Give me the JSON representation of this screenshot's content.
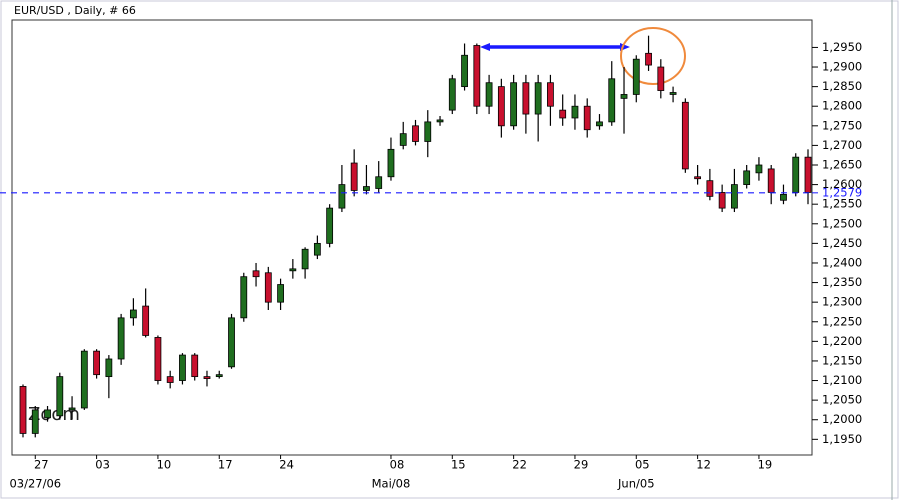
{
  "chart_data": {
    "type": "candlestick",
    "title": "EUR/USD , Daily, # 66",
    "annotation": "Zoom",
    "categories": [
      null,
      "27",
      null,
      null,
      null,
      null,
      "03",
      null,
      null,
      null,
      null,
      "10",
      null,
      null,
      null,
      null,
      "17",
      null,
      null,
      null,
      null,
      "24",
      null,
      null,
      null,
      null,
      null,
      null,
      null,
      null,
      "08",
      null,
      null,
      null,
      null,
      "15",
      null,
      null,
      null,
      null,
      "22",
      null,
      null,
      null,
      null,
      "29",
      null,
      null,
      null,
      null,
      "05",
      null,
      null,
      null,
      null,
      "12",
      null,
      null,
      null,
      null,
      "19",
      null,
      null,
      null,
      null
    ],
    "date_labels": [
      null,
      "03/27/06",
      null,
      null,
      null,
      null,
      null,
      null,
      null,
      null,
      null,
      null,
      null,
      null,
      null,
      null,
      null,
      null,
      null,
      null,
      null,
      null,
      null,
      null,
      null,
      null,
      null,
      null,
      null,
      null,
      "Mai/08",
      null,
      null,
      null,
      null,
      null,
      null,
      null,
      null,
      null,
      null,
      null,
      null,
      null,
      null,
      null,
      null,
      null,
      null,
      null,
      "Jun/05",
      null,
      null,
      null,
      null,
      null,
      null,
      null,
      null,
      null,
      null,
      null,
      null,
      null,
      null
    ],
    "open": [
      1.2085,
      1.1965,
      1.2005,
      1.201,
      1.2025,
      1.203,
      1.2175,
      1.211,
      1.2155,
      1.226,
      1.229,
      1.221,
      1.211,
      1.21,
      1.2165,
      1.211,
      1.211,
      1.2135,
      1.226,
      1.238,
      1.2375,
      1.23,
      1.238,
      1.2385,
      1.242,
      1.245,
      1.254,
      1.2655,
      1.2585,
      1.259,
      1.262,
      1.27,
      1.275,
      1.271,
      1.276,
      1.279,
      1.285,
      1.2955,
      1.28,
      1.285,
      1.275,
      1.286,
      1.278,
      1.286,
      1.279,
      1.277,
      1.28,
      1.275,
      1.276,
      1.282,
      1.283,
      1.2935,
      1.29,
      1.283,
      1.281,
      1.262,
      1.261,
      1.258,
      1.254,
      1.26,
      1.263,
      1.264,
      1.256,
      1.258,
      1.267
    ],
    "high": [
      1.209,
      1.2035,
      1.2035,
      1.212,
      1.206,
      1.218,
      1.218,
      1.2165,
      1.227,
      1.231,
      1.2335,
      1.2215,
      1.2125,
      1.217,
      1.217,
      1.2125,
      1.2125,
      1.227,
      1.2375,
      1.24,
      1.239,
      1.236,
      1.241,
      1.244,
      1.247,
      1.255,
      1.265,
      1.269,
      1.265,
      1.266,
      1.272,
      1.276,
      1.2765,
      1.279,
      1.2775,
      1.288,
      1.296,
      1.296,
      1.288,
      1.287,
      1.288,
      1.288,
      1.288,
      1.288,
      1.283,
      1.283,
      1.282,
      1.278,
      1.2915,
      1.29,
      1.293,
      1.298,
      1.292,
      1.285,
      1.282,
      1.265,
      1.264,
      1.26,
      1.264,
      1.265,
      1.267,
      1.265,
      1.26,
      1.268,
      1.269
    ],
    "low": [
      1.1955,
      1.1955,
      1.1995,
      1.2,
      1.2,
      1.2025,
      1.2105,
      1.2055,
      1.214,
      1.224,
      1.221,
      1.209,
      1.208,
      1.209,
      1.21,
      1.2085,
      1.2105,
      1.213,
      1.225,
      1.234,
      1.228,
      1.228,
      1.236,
      1.236,
      1.241,
      1.244,
      1.253,
      1.257,
      1.2575,
      1.258,
      1.261,
      1.269,
      1.27,
      1.267,
      1.275,
      1.278,
      1.284,
      1.278,
      1.278,
      1.272,
      1.274,
      1.273,
      1.271,
      1.275,
      1.275,
      1.274,
      1.272,
      1.274,
      1.275,
      1.273,
      1.281,
      1.289,
      1.282,
      1.281,
      1.263,
      1.26,
      1.256,
      1.253,
      1.253,
      1.259,
      1.261,
      1.255,
      1.255,
      1.257,
      1.255
    ],
    "close": [
      1.1965,
      1.2025,
      1.2025,
      1.211,
      1.203,
      1.2175,
      1.2115,
      1.2155,
      1.226,
      1.228,
      1.2215,
      1.21,
      1.2095,
      1.2165,
      1.211,
      1.2105,
      1.2115,
      1.226,
      1.2365,
      1.2365,
      1.23,
      1.2345,
      1.2385,
      1.2435,
      1.245,
      1.254,
      1.26,
      1.2585,
      1.2595,
      1.262,
      1.269,
      1.273,
      1.271,
      1.276,
      1.2765,
      1.287,
      1.293,
      1.28,
      1.286,
      1.275,
      1.286,
      1.278,
      1.286,
      1.28,
      1.277,
      1.28,
      1.274,
      1.276,
      1.287,
      1.283,
      1.292,
      1.2905,
      1.284,
      1.2835,
      1.264,
      1.2615,
      1.257,
      1.254,
      1.26,
      1.2635,
      1.265,
      1.258,
      1.2575,
      1.267,
      1.258
    ],
    "up_color": "#1f6e1f",
    "down_color": "#c8102e",
    "last": {
      "value": 1.2579,
      "label": "1,2579"
    },
    "last_color": "#1a1aff",
    "ylim": [
      1.191,
      1.302
    ],
    "yticks": [
      {
        "value": 1.195,
        "label": "1,1950"
      },
      {
        "value": 1.2,
        "label": "1,2000"
      },
      {
        "value": 1.205,
        "label": "1,2050"
      },
      {
        "value": 1.21,
        "label": "1,2100"
      },
      {
        "value": 1.215,
        "label": "1,2150"
      },
      {
        "value": 1.22,
        "label": "1,2200"
      },
      {
        "value": 1.225,
        "label": "1,2250"
      },
      {
        "value": 1.23,
        "label": "1,2300"
      },
      {
        "value": 1.235,
        "label": "1,2350"
      },
      {
        "value": 1.24,
        "label": "1,2400"
      },
      {
        "value": 1.245,
        "label": "1,2450"
      },
      {
        "value": 1.25,
        "label": "1,2500"
      },
      {
        "value": 1.255,
        "label": "1,2550"
      },
      {
        "value": 1.26,
        "label": "1,2600"
      },
      {
        "value": 1.265,
        "label": "1,2650"
      },
      {
        "value": 1.27,
        "label": "1,2700"
      },
      {
        "value": 1.275,
        "label": "1,2750"
      },
      {
        "value": 1.28,
        "label": "1,2800"
      },
      {
        "value": 1.285,
        "label": "1,2850"
      },
      {
        "value": 1.29,
        "label": "1,2900"
      },
      {
        "value": 1.295,
        "label": "1,2950"
      }
    ]
  }
}
